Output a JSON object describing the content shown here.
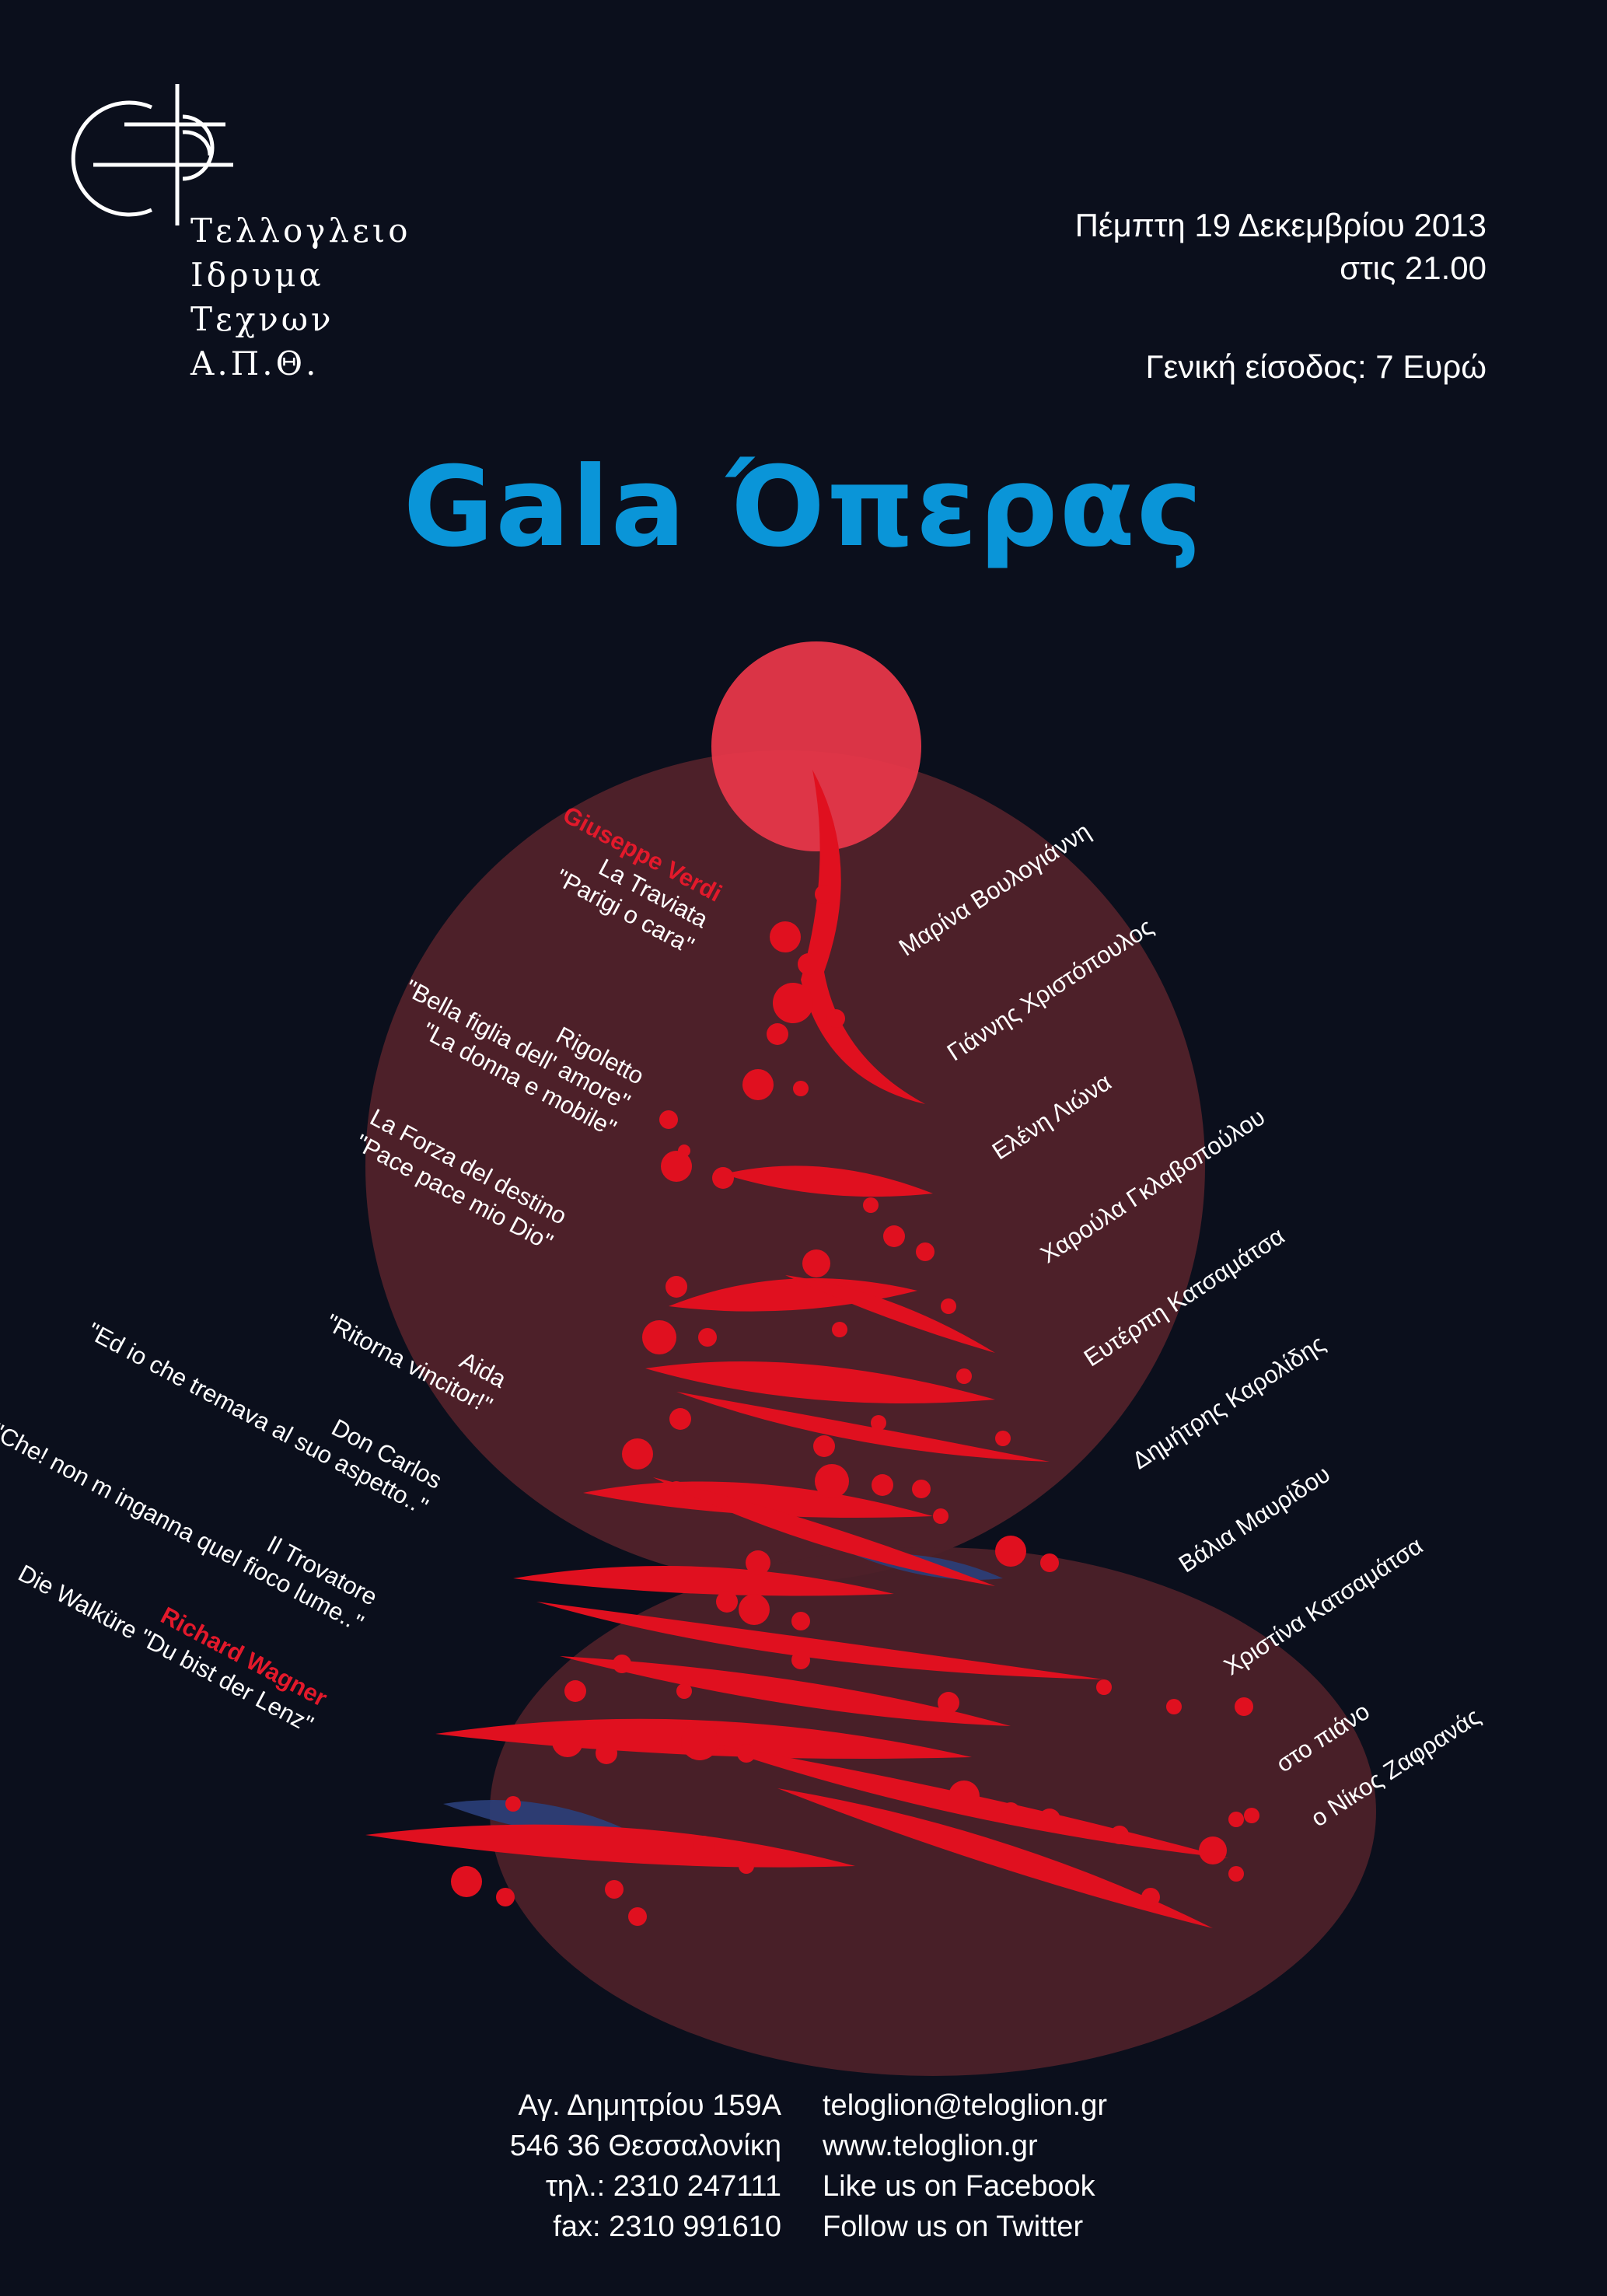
{
  "logo": {
    "icon": "teloglion-monogram-icon",
    "lines": [
      "Τελλογλειο",
      "Ιδρυμα",
      "Τεχνων",
      "Α.Π.Θ."
    ]
  },
  "event": {
    "date": "Πέμπτη 19 Δεκεμβρίου 2013",
    "time": "στις 21.00",
    "admission": "Γενική είσοδος: 7 Ευρώ"
  },
  "title": "Gala Όπερας",
  "programme": {
    "verdi": {
      "composer": "Giuseppe Verdi",
      "works": [
        {
          "opera": "La Traviata",
          "arias": [
            "\"Parigi o cara\""
          ]
        },
        {
          "opera": "Rigoletto",
          "arias": [
            "\"Bella figlia dell' amore\"",
            "\"La donna e mobile\""
          ]
        },
        {
          "opera": "La Forza del destino",
          "arias": [
            "\"Pace pace mio Dio\""
          ]
        },
        {
          "opera": "Aida",
          "arias": [
            "\"Ritorna vincitor!\""
          ]
        },
        {
          "opera": "Don Carlos",
          "arias": [
            "\"Ed io che tremava al suo aspetto..\""
          ]
        },
        {
          "opera": "Il Trovatore",
          "arias": [
            "\"Che! non m inganna quel fioco lume..\""
          ]
        }
      ]
    },
    "wagner": {
      "composer": "Richard Wagner",
      "work": "Die Walküre  \"Du bist der Lenz\""
    }
  },
  "performers": [
    "Μαρίνα Βουλογιάννη",
    "Γιάννης Χριστόπουλος",
    "Ελένη Λιώνα",
    "Χαρούλα Γκλαβοπούλου",
    "Ευτέρπη Κατσαμάτσα",
    "Δημήτρης Καρολίδης",
    "Βάλια Μαυρίδου",
    "Χριστίνα Κατσαμάτσα"
  ],
  "pianist": {
    "label": "στο πιάνο",
    "name": "ο Νίκος Ζαφρανάς"
  },
  "footer": {
    "address_lines": [
      "Αγ. Δημητρίου 159Α",
      "546 36 Θεσσαλονίκη",
      "τηλ.: 2310 247111",
      "fax: 2310 991610"
    ],
    "contact_lines": [
      "teloglion@teloglion.gr",
      "www.teloglion.gr",
      "Like us on Facebook",
      "Follow us on Twitter"
    ]
  },
  "colors": {
    "background": "#0b0f1c",
    "title": "#0a95d8",
    "accent_red": "#e3192b",
    "circle": "#4d2029"
  }
}
